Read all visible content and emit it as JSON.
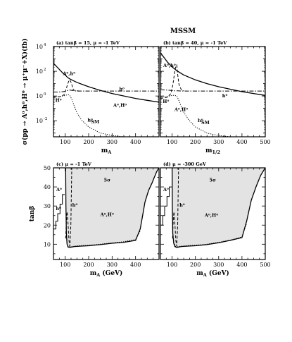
{
  "title": "MSSM",
  "chart_data": [
    {
      "type": "line",
      "id": "a",
      "panel_title": "(a) tanβ = 15, μ = -1 TeV",
      "xlabel": "m_A",
      "ylabel": "σ(pp → A⁰,h⁰,H⁰ → μ⁺μ⁻+X)(fb)",
      "xlim": [
        50,
        500
      ],
      "ylim_log10": [
        -3.3,
        4
      ],
      "log_y": true,
      "x_ticks": [
        100,
        200,
        300,
        400
      ],
      "y_ticks": [
        {
          "exp": -2,
          "label": "10"
        },
        {
          "exp": 0,
          "label": "10"
        },
        {
          "exp": 2,
          "label": "10"
        },
        {
          "exp": 4,
          "label": "10"
        }
      ],
      "y_tick_exponents": [
        "-2",
        "0",
        "2",
        "4"
      ],
      "annotations": [
        {
          "text": "A⁰,h⁰",
          "x": 90,
          "y_log10": 1.8
        },
        {
          "text": "h⁰",
          "x": 330,
          "y_log10": 0.55
        },
        {
          "text": "H⁰",
          "x": 58,
          "y_log10": -0.35
        },
        {
          "text": "A⁰,H⁰",
          "x": 305,
          "y_log10": -0.75
        },
        {
          "text": "h⁰",
          "x": 195,
          "y_log10": -1.95
        },
        {
          "text": "SM",
          "x": 210,
          "y_log10": -2.1
        }
      ],
      "series": [
        {
          "style": "solid",
          "x": [
            50,
            60,
            70,
            80,
            90,
            100,
            110,
            120,
            130,
            150,
            175,
            200,
            250,
            300,
            350,
            400,
            450,
            500
          ],
          "y_log10": [
            2.65,
            2.45,
            2.25,
            2.05,
            1.85,
            1.7,
            1.5,
            1.38,
            1.28,
            1.1,
            0.92,
            0.75,
            0.45,
            0.2,
            0,
            -0.2,
            -0.35,
            -0.5
          ]
        },
        {
          "style": "dashdot",
          "x": [
            50,
            80,
            100,
            110,
            120,
            130,
            140,
            150,
            200,
            300,
            400,
            500
          ],
          "y_log10": [
            0.32,
            0.33,
            0.38,
            0.45,
            0.48,
            0.45,
            0.42,
            0.4,
            0.4,
            0.4,
            0.4,
            0.4
          ]
        },
        {
          "style": "dashed",
          "x": [
            50,
            80,
            95,
            105,
            110,
            115,
            120,
            125,
            130,
            135,
            140,
            150,
            160
          ],
          "y_log10": [
            -0.1,
            -0.05,
            0.1,
            0.6,
            0.95,
            1.2,
            1.3,
            1.1,
            0.8,
            0.5,
            0.45,
            0.42,
            0.4
          ]
        },
        {
          "style": "dotted",
          "x": [
            50,
            70,
            90,
            100,
            110,
            115,
            120,
            130,
            140,
            150,
            170,
            200,
            250,
            300,
            350,
            400
          ],
          "y_log10": [
            -0.1,
            -0.05,
            0.0,
            0.05,
            0.1,
            0.1,
            0.05,
            -0.35,
            -0.9,
            -1.35,
            -1.95,
            -2.5,
            -3.0,
            -3.2,
            -3.3,
            -3.3
          ]
        }
      ]
    },
    {
      "type": "line",
      "id": "b",
      "panel_title": "(b) tanβ = 40, μ = -1 TeV",
      "xlabel": "m_1/2",
      "xlim": [
        50,
        500
      ],
      "ylim_log10": [
        -3.3,
        4
      ],
      "log_y": true,
      "x_ticks": [
        100,
        200,
        300,
        400,
        500
      ],
      "annotations": [
        {
          "text": "A⁰,h⁰",
          "x": 62,
          "y_log10": 2.45
        },
        {
          "text": "h⁰",
          "x": 315,
          "y_log10": 0.0
        },
        {
          "text": "H⁰",
          "x": 60,
          "y_log10": -0.45
        },
        {
          "text": "A⁰,H⁰",
          "x": 110,
          "y_log10": -1.1
        },
        {
          "text": "h⁰",
          "x": 210,
          "y_log10": -2.0
        },
        {
          "text": "SM",
          "x": 225,
          "y_log10": -2.15
        }
      ],
      "series": [
        {
          "style": "solid",
          "x": [
            50,
            60,
            70,
            80,
            100,
            120,
            150,
            200,
            250,
            300,
            350,
            400,
            450,
            500
          ],
          "y_log10": [
            3.5,
            3.25,
            3.0,
            2.75,
            2.35,
            2.05,
            1.7,
            1.3,
            1.0,
            0.75,
            0.55,
            0.35,
            0.2,
            0.05
          ]
        },
        {
          "style": "dashdot",
          "x": [
            50,
            80,
            100,
            110,
            120,
            130,
            150,
            200,
            300,
            400,
            500
          ],
          "y_log10": [
            0.5,
            0.48,
            0.44,
            0.42,
            0.42,
            0.41,
            0.4,
            0.4,
            0.4,
            0.4,
            0.4
          ]
        },
        {
          "style": "dashed",
          "x": [
            50,
            80,
            95,
            100,
            105,
            110,
            115,
            120,
            125,
            130,
            140,
            150
          ],
          "y_log10": [
            -0.2,
            -0.1,
            0.2,
            0.6,
            1.1,
            1.8,
            2.3,
            2.5,
            1.6,
            0.9,
            0.5,
            0.42
          ]
        },
        {
          "style": "dotted",
          "x": [
            50,
            70,
            90,
            100,
            110,
            120,
            130,
            140,
            150,
            170,
            200,
            250,
            300,
            350,
            400
          ],
          "y_log10": [
            -0.1,
            -0.05,
            0.0,
            0.05,
            0.05,
            0.0,
            -0.4,
            -0.9,
            -1.3,
            -1.9,
            -2.5,
            -3.0,
            -3.2,
            -3.3,
            -3.3
          ]
        }
      ]
    },
    {
      "type": "area",
      "id": "c",
      "panel_title": "(c) μ = -1 TeV",
      "xlabel": "m_A (GeV)",
      "ylabel": "tanβ",
      "xlim": [
        50,
        500
      ],
      "ylim": [
        2,
        50
      ],
      "x_ticks": [
        100,
        200,
        300,
        400
      ],
      "y_ticks": [
        10,
        20,
        30,
        40,
        50
      ],
      "annotations": [
        {
          "text": "5σ",
          "x": 265,
          "y": 43.5
        },
        {
          "text": "A⁰",
          "x": 62,
          "y": 38.5
        },
        {
          "text": "h⁰",
          "x": 60,
          "y": 28.5
        },
        {
          "text": "h⁰",
          "x": 130,
          "y": 30.5
        },
        {
          "text": "A⁰,H⁰",
          "x": 250,
          "y": 25.5
        }
      ],
      "series": [
        {
          "style": "solid-boundary",
          "x": [
            102,
            103,
            105,
            108,
            112,
            120,
            140,
            170,
            200,
            250,
            300,
            350,
            400,
            420,
            430,
            440,
            455,
            470,
            480,
            490,
            500
          ],
          "y": [
            50,
            30,
            16,
            10,
            8.5,
            8.3,
            8.8,
            9.0,
            9.2,
            9.8,
            10.5,
            11,
            12,
            18,
            25,
            32,
            38,
            42,
            45,
            48,
            50
          ]
        },
        {
          "style": "dotted",
          "x": [
            115,
            120,
            140,
            170,
            200,
            250,
            300,
            350,
            400,
            420
          ],
          "y": [
            9.0,
            8.6,
            9.0,
            9.3,
            9.5,
            10.0,
            10.7,
            11.3,
            12.5,
            17
          ]
        },
        {
          "style": "dashed",
          "x": [
            102,
            103,
            104,
            106,
            108,
            112,
            116,
            120,
            124,
            128
          ],
          "y": [
            13,
            16,
            20,
            24,
            27,
            21,
            12,
            9,
            20,
            50
          ]
        },
        {
          "style": "step",
          "x": [
            50,
            60,
            60,
            68,
            68,
            78,
            78,
            88,
            88,
            98
          ],
          "y": [
            18,
            18,
            22,
            22,
            26,
            26,
            31,
            31,
            36,
            36
          ]
        }
      ]
    },
    {
      "type": "area",
      "id": "d",
      "panel_title": "(d) μ = -300 GeV",
      "xlabel": "m_A (GeV)",
      "xlim": [
        50,
        500
      ],
      "ylim": [
        2,
        50
      ],
      "x_ticks": [
        100,
        200,
        300,
        400,
        500
      ],
      "annotations": [
        {
          "text": "5σ",
          "x": 260,
          "y": 43.5
        },
        {
          "text": "A⁰",
          "x": 62,
          "y": 38.5
        },
        {
          "text": "h⁰",
          "x": 132,
          "y": 30.5
        },
        {
          "text": "A⁰,H⁰",
          "x": 240,
          "y": 25
        }
      ],
      "series": [
        {
          "style": "solid-boundary",
          "x": [
            100,
            101,
            103,
            107,
            112,
            120,
            140,
            170,
            200,
            250,
            300,
            350,
            400,
            420,
            440,
            460,
            480,
            500
          ],
          "y": [
            50,
            30,
            16,
            10.5,
            8.8,
            8.3,
            8.8,
            9.0,
            9.2,
            9.8,
            10.8,
            12,
            13.5,
            22,
            33,
            40,
            46,
            50
          ]
        },
        {
          "style": "dotted",
          "x": [
            110,
            115,
            120,
            140,
            170,
            200,
            250,
            300,
            350,
            400,
            420
          ],
          "y": [
            10,
            9.0,
            8.6,
            9.0,
            9.3,
            9.5,
            10.0,
            11,
            12.2,
            13.8,
            21
          ]
        },
        {
          "style": "dashed",
          "x": [
            102,
            103,
            104,
            106,
            108,
            112,
            116,
            120,
            124,
            128
          ],
          "y": [
            13,
            16,
            20,
            24,
            27,
            21,
            12,
            9,
            20,
            50
          ]
        },
        {
          "style": "step",
          "x": [
            50,
            60,
            60,
            68,
            68,
            78,
            78,
            88,
            88,
            98
          ],
          "y": [
            20,
            20,
            25,
            25,
            30,
            30,
            35,
            35,
            40,
            40
          ]
        }
      ]
    }
  ]
}
